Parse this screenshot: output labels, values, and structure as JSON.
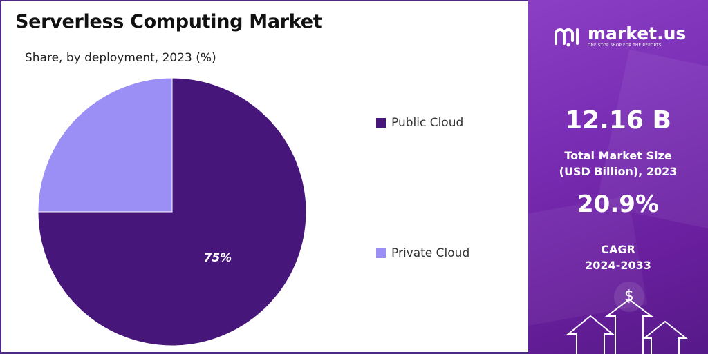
{
  "header": {
    "title": "Serverless Computing Market",
    "subtitle": "Share, by deployment, 2023 (%)"
  },
  "chart_data": {
    "type": "pie",
    "title": "Serverless Computing Market",
    "subtitle": "Share, by deployment, 2023 (%)",
    "categories": [
      "Public Cloud",
      "Private Cloud"
    ],
    "values": [
      75,
      25
    ],
    "data_labels": [
      "75%",
      ""
    ],
    "colors": [
      "#47167a",
      "#9b8ff5"
    ],
    "legend_placement": "right"
  },
  "brand": {
    "name": "market.us",
    "tagline": "ONE STOP SHOP FOR THE REPORTS"
  },
  "stats": {
    "market_size_value": "12.16 B",
    "market_size_label_line1": "Total Market Size",
    "market_size_label_line2": "(USD Billion), 2023",
    "cagr_value": "20.9%",
    "cagr_label_line1": "CAGR",
    "cagr_label_line2": "2024-2033"
  },
  "icons": {
    "dollar_symbol": "$",
    "names": [
      "logo-icon",
      "dollar-icon",
      "arrow-up-icon"
    ]
  },
  "colors": {
    "panel_gradient_start": "#8b3fc4",
    "panel_gradient_end": "#561a88",
    "public_cloud": "#47167a",
    "private_cloud": "#9b8ff5"
  }
}
